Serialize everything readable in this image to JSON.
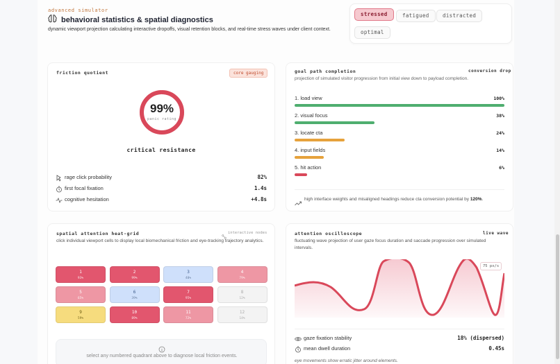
{
  "header": {
    "eyebrow": "advanced simulator",
    "title": "behavioral statistics & spatial diagnostics",
    "subtitle": "dynamic viewport projection calculating interactive dropoffs, visual retention blocks, and real-time stress waves under client context."
  },
  "modes": [
    {
      "label": "stressed",
      "active": true
    },
    {
      "label": "fatigued",
      "active": false
    },
    {
      "label": "distracted",
      "active": false
    },
    {
      "label": "optimal",
      "active": false
    }
  ],
  "friction": {
    "label": "friction quotient",
    "badge": "core gauging",
    "percent_text": "99%",
    "value": 0.99,
    "ring_sublabel": "panic rating",
    "caption": "critical resistance",
    "metrics": [
      {
        "icon": "cursor-click-icon",
        "label": "rage click probability",
        "value": "82%"
      },
      {
        "icon": "timer-icon",
        "label": "first focal fixation",
        "value": "1.4s"
      },
      {
        "icon": "activity-icon",
        "label": "cognitive hesitation",
        "value": "+4.8s"
      }
    ]
  },
  "goal_path": {
    "label": "goal path completion",
    "tag": "conversion drop",
    "description": "projection of simulated visitor progression from initial view down to payload completion.",
    "steps": [
      {
        "label": "1. load view",
        "value_text": "100%",
        "value": 100,
        "color": "#4fae6f"
      },
      {
        "label": "2. visual focus",
        "value_text": "38%",
        "value": 38,
        "color": "#4fae6f"
      },
      {
        "label": "3. locate cta",
        "value_text": "24%",
        "value": 24,
        "color": "#e6a23c"
      },
      {
        "label": "4. input fields",
        "value_text": "14%",
        "value": 14,
        "color": "#e6a23c"
      },
      {
        "label": "5. hit action",
        "value_text": "6%",
        "value": 6,
        "color": "#d9485a"
      }
    ],
    "insight_prefix": "high interface weights and misaligned headings reduce cta conversion potential by ",
    "insight_value": "120%",
    "insight_suffix": "."
  },
  "heat_grid": {
    "label": "spatial attention heat-grid",
    "tag": "interactive nodes",
    "description": "click individual viewport cells to display local biomechanical friction and eye-tracking trajectory analytics.",
    "cells": [
      {
        "num": "1",
        "pct": "93%",
        "color": "#e2566e",
        "style": "dark"
      },
      {
        "num": "2",
        "pct": "99%",
        "color": "#e2566e",
        "style": "dark"
      },
      {
        "num": "3",
        "pct": "40%",
        "color": "#cfe0fb",
        "style": "lite"
      },
      {
        "num": "4",
        "pct": "79%",
        "color": "#ee97a4",
        "style": "dark"
      },
      {
        "num": "5",
        "pct": "65%",
        "color": "#ee97a4",
        "style": "dark"
      },
      {
        "num": "6",
        "pct": "39%",
        "color": "#cfe0fb",
        "style": "lite"
      },
      {
        "num": "7",
        "pct": "95%",
        "color": "#e2566e",
        "style": "dark"
      },
      {
        "num": "8",
        "pct": "12%",
        "color": "#f3f3f3",
        "style": "grey"
      },
      {
        "num": "9",
        "pct": "59%",
        "color": "#f6dc7e",
        "style": "yellow"
      },
      {
        "num": "10",
        "pct": "89%",
        "color": "#e2566e",
        "style": "dark"
      },
      {
        "num": "11",
        "pct": "72%",
        "color": "#ee97a4",
        "style": "dark"
      },
      {
        "num": "12",
        "pct": "14%",
        "color": "#f3f3f3",
        "style": "grey"
      }
    ],
    "hint": "select any numbered quadrant above to diagnose local friction events."
  },
  "oscilloscope": {
    "label": "attention oscilloscope",
    "tag": "live wave",
    "description": "fluctuating wave projection of user gaze focus duration and saccade progression over simulated intervals.",
    "rate": "75 px/s",
    "stats": [
      {
        "icon": "eye-icon",
        "label": "gaze fixation stability",
        "value": "18% (dispersed)"
      },
      {
        "icon": "timer-icon",
        "label": "mean dwell duration",
        "value": "0.45s"
      }
    ],
    "footnote": "eye movements show erratic jitter around elements."
  }
}
